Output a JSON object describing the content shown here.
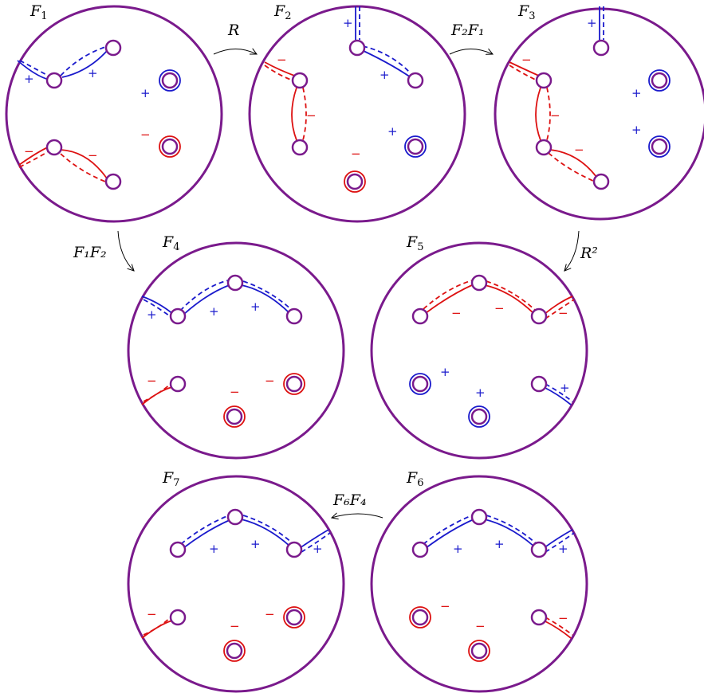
{
  "colors": {
    "disk": "#7a1a8c",
    "positive": "#1a1acc",
    "negative": "#dd1111",
    "arrow": "#000000"
  },
  "panels": [
    {
      "name": "F",
      "sub": "1"
    },
    {
      "name": "F",
      "sub": "2"
    },
    {
      "name": "F",
      "sub": "3"
    },
    {
      "name": "F",
      "sub": "4"
    },
    {
      "name": "F",
      "sub": "5"
    },
    {
      "name": "F",
      "sub": "6"
    },
    {
      "name": "F",
      "sub": "7"
    }
  ],
  "arrows": [
    {
      "from": "F1",
      "to": "F2",
      "text": "R"
    },
    {
      "from": "F2",
      "to": "F3",
      "text": "F₂F₁"
    },
    {
      "from": "F1",
      "to": "F4",
      "text": "F₁F₂"
    },
    {
      "from": "F3",
      "to": "F5",
      "text": "R²"
    },
    {
      "from": "F6",
      "to": "F7",
      "text": "F₆F₄"
    }
  ],
  "signs": {
    "plus": "+",
    "minus": "−"
  }
}
